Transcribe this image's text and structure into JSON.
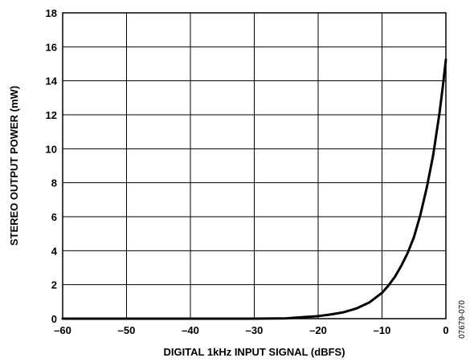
{
  "chart_data": {
    "type": "line",
    "title": "",
    "xlabel": "DIGITAL 1kHz INPUT SIGNAL (dBFS)",
    "ylabel": "STEREO OUTPUT POWER (mW)",
    "xlim": [
      -60,
      0
    ],
    "ylim": [
      0,
      18
    ],
    "grid": true,
    "legend": "none",
    "x_ticks": [
      -60,
      -50,
      -40,
      -30,
      -20,
      -10,
      0
    ],
    "x_tick_labels": [
      "–60",
      "–50",
      "–40",
      "–30",
      "–20",
      "–10",
      "0"
    ],
    "y_ticks": [
      0,
      2,
      4,
      6,
      8,
      10,
      12,
      14,
      16,
      18
    ],
    "y_tick_labels": [
      "0",
      "2",
      "4",
      "6",
      "8",
      "10",
      "12",
      "14",
      "16",
      "18"
    ],
    "series": [
      {
        "x": [
          -60,
          -30,
          -25,
          -22,
          -20,
          -18,
          -16,
          -14,
          -12,
          -10,
          -9,
          -8,
          -7,
          -6,
          -5,
          -4,
          -3,
          -2,
          -1,
          -0.5,
          0
        ],
        "y": [
          0,
          0,
          0.02,
          0.1,
          0.15,
          0.25,
          0.38,
          0.6,
          0.95,
          1.52,
          1.95,
          2.45,
          3.1,
          3.85,
          4.8,
          6.1,
          7.7,
          9.6,
          12.1,
          13.6,
          15.25
        ],
        "color": "#000000"
      }
    ],
    "figure_code": "07679-070"
  }
}
